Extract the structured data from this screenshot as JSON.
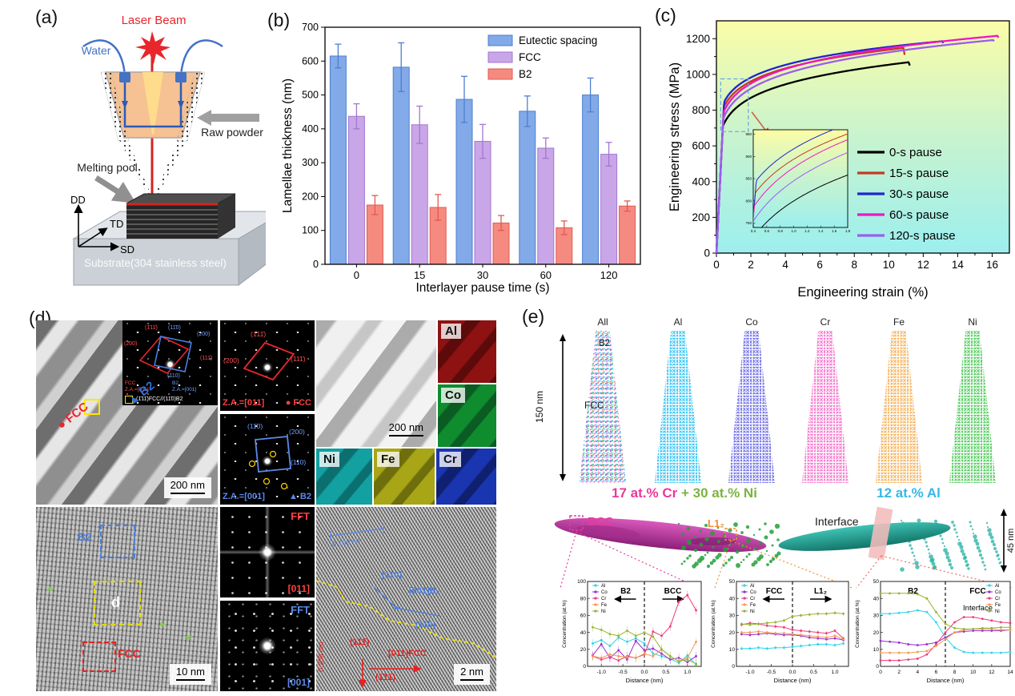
{
  "panel_a": {
    "label": "(a)",
    "laser_beam": "Laser Beam",
    "water": "Water",
    "raw_powder": "Raw powder",
    "melting_pool": "Melting pool",
    "axis_dd": "DD",
    "axis_td": "TD",
    "axis_sd": "SD",
    "substrate": "Substrate(304 stainless steel)"
  },
  "panel_b": {
    "label": "(b)"
  },
  "panel_c": {
    "label": "(c)"
  },
  "panel_d": {
    "label": "(d)",
    "tem_overview": {
      "fcc_marker": "● FCC",
      "b2_marker": "▲ B2",
      "scale": "200 nm",
      "saed": {
        "spot_red_1": "(1̄11̄)",
        "spot_blue_1": "(11̄0)",
        "spot_blue_2": "(200)",
        "spot_red_2": "(2̄00)",
        "spot_red_3": "(111̄)",
        "spot_blue_3": "(110)",
        "fcc_line1": "FCC",
        "fcc_line2": "Z.A.=[011]",
        "b2_line1": "B2",
        "b2_line2": "Z.A.=[001]",
        "relation": "(1̄11̄)FCC//(11̄0)B2"
      }
    },
    "saed_fcc": {
      "caption": "Z.A.=[011]",
      "marker": "● FCC",
      "spot1": "(1̄11̄)",
      "spot2": "(200)",
      "spot3": "(111̄)"
    },
    "saed_b2": {
      "caption": "Z.A.=[001]",
      "marker": "▲ B2",
      "spot1": "(11̄0)",
      "spot2": "(200)",
      "spot3": "(110)"
    },
    "eds": {
      "scale": "200 nm",
      "maps": [
        {
          "el": "Al",
          "c1": "#8e1212",
          "c2": "#5c0a0a"
        },
        {
          "el": "Co",
          "c1": "#0f8c2e",
          "c2": "#0a5c22"
        },
        {
          "el": "Ni",
          "c1": "#12a0a0",
          "c2": "#0b6f70"
        },
        {
          "el": "Fe",
          "c1": "#a8a616",
          "c2": "#6f6e0c"
        },
        {
          "el": "Cr",
          "c1": "#1a35b0",
          "c2": "#0f2070"
        }
      ]
    },
    "hrtem": {
      "b2": "B2",
      "d": "d",
      "fcc": "FCC",
      "scale": "10 nm",
      "arrow_glyph": "➤"
    },
    "fft_fcc": {
      "title": "FFT",
      "za": "[011]"
    },
    "fft_b2": {
      "title": "FFT",
      "za": "[001]"
    },
    "lattice": {
      "d_blue": "0.199 nm",
      "dir_blue1": "[110]",
      "dir_blue2": "[001]B₂",
      "plane_blue": "(11̄0)",
      "plane_red1": "(111̄)",
      "dir_red": "[011]FCC",
      "plane_red2": "(1̄11̄)",
      "d_red": "0.206 nm",
      "scale": "2 nm"
    }
  },
  "panel_e": {
    "label": "(e)",
    "needles": [
      {
        "name": "All",
        "color": "multi"
      },
      {
        "name": "Al",
        "color": "#45c8f5"
      },
      {
        "name": "Co",
        "color": "#7b7be8"
      },
      {
        "name": "Cr",
        "color": "#f77fd0"
      },
      {
        "name": "Fe",
        "color": "#f6b96b"
      },
      {
        "name": "Ni",
        "color": "#5fcf6a"
      }
    ],
    "b2": "B2",
    "fcc": "FCC",
    "height_label": "150 nm",
    "caption_cr": "17 at.% Cr",
    "caption_plus_ni": " + 30 at.% Ni",
    "caption_al": "12 at.% Al",
    "color_cr": "#e83a9a",
    "color_ni": "#7cb342",
    "color_al": "#35b8e8",
    "bcc": "BCC",
    "l12": "L1₂",
    "interface": "Interface",
    "width_label": "45 nm",
    "color_bcc": "#e83a9a",
    "color_l12": "#f09030"
  },
  "chart_data": [
    {
      "id": "lamellae_thickness",
      "type": "bar",
      "categories": [
        "0",
        "15",
        "30",
        "60",
        "120"
      ],
      "series": [
        {
          "name": "Eutectic spacing",
          "color": "#82aae8",
          "edge": "#4d7fd0",
          "values": [
            615,
            582,
            487,
            452,
            500
          ],
          "errors": [
            35,
            72,
            68,
            45,
            50
          ]
        },
        {
          "name": "FCC",
          "color": "#c9a6e8",
          "edge": "#a377cf",
          "values": [
            437,
            412,
            363,
            343,
            325
          ],
          "errors": [
            37,
            55,
            50,
            30,
            35
          ]
        },
        {
          "name": "B2",
          "color": "#f58a80",
          "edge": "#e25a50",
          "values": [
            175,
            168,
            122,
            108,
            172
          ],
          "errors": [
            28,
            38,
            22,
            20,
            15
          ]
        }
      ],
      "xlabel": "Interlayer pause time (s)",
      "ylabel": "Lamellae thickness (nm)",
      "ylim": [
        0,
        700
      ],
      "ytick_step": 100,
      "legend_position": "top-right",
      "grid": false
    },
    {
      "id": "stress_strain",
      "type": "line",
      "xlabel": "Engineering strain (%)",
      "ylabel": "Engineering stress (MPa)",
      "xlim": [
        0,
        17
      ],
      "ylim": [
        0,
        1300
      ],
      "xticks": [
        0,
        2,
        4,
        6,
        8,
        10,
        12,
        14,
        16
      ],
      "yticks": [
        0,
        200,
        400,
        600,
        800,
        1000,
        1200
      ],
      "background": [
        "#fbfda6",
        "#c8f3cf",
        "#9cefee"
      ],
      "model": {
        "elastic_slope": 1900
      },
      "series": [
        {
          "name": "0-s pause",
          "color": "#000000",
          "uts": 1068,
          "elongation": 11.15,
          "n": 0.12,
          "drop": 18
        },
        {
          "name": "15-s pause",
          "color": "#c23b22",
          "uts": 1148,
          "elongation": 10.85,
          "n": 0.105,
          "drop": 38
        },
        {
          "name": "30-s pause",
          "color": "#1f25cf",
          "uts": 1186,
          "elongation": 13.1,
          "n": 0.1,
          "drop": 10
        },
        {
          "name": "60-s pause",
          "color": "#ef17c0",
          "uts": 1216,
          "elongation": 16.3,
          "n": 0.118,
          "drop": 10
        },
        {
          "name": "120-s pause",
          "color": "#9a5df2",
          "uts": 1192,
          "elongation": 16.05,
          "n": 0.124,
          "drop": 6
        }
      ],
      "inset": {
        "xlim": [
          0.4,
          1.8
        ],
        "ylim": [
          740,
          960
        ],
        "source_box": [
          0.25,
          680,
          1.85,
          975
        ]
      }
    },
    {
      "id": "profile_b2_bcc",
      "type": "line",
      "xlabel": "Distance (nm)",
      "ylabel": "Concentration (at.%)",
      "xlim": [
        -1.32,
        1.32
      ],
      "ylim": [
        0,
        100
      ],
      "yticks": [
        0,
        20,
        40,
        60,
        80,
        100
      ],
      "xticks": [
        -1.0,
        -0.5,
        0.0,
        0.5,
        1.0
      ],
      "xtick_labels": [
        "-1.0",
        "-0.5",
        "0.0",
        "0.5",
        "1.0"
      ],
      "divider_x": 0,
      "region_left": "B2",
      "region_right": "BCC",
      "region_arrows": true,
      "legend_position": "top-left",
      "error_bar": 5,
      "x": [
        -1.2,
        -1.0,
        -0.8,
        -0.6,
        -0.4,
        -0.2,
        0,
        0.2,
        0.4,
        0.6,
        0.8,
        1.0,
        1.2
      ],
      "series": [
        {
          "name": "Al",
          "color": "#2ed3e8",
          "y": [
            27,
            31,
            24,
            34,
            29,
            33,
            27,
            15,
            12,
            9,
            4,
            13,
            2
          ]
        },
        {
          "name": "Co",
          "color": "#9a2bd0",
          "y": [
            13,
            26,
            10,
            19,
            8,
            30,
            19,
            21,
            15,
            8,
            10,
            5,
            12
          ]
        },
        {
          "name": "Cr",
          "color": "#ee3a7a",
          "y": [
            12,
            8,
            11,
            7,
            12,
            10,
            14,
            41,
            36,
            47,
            76,
            84,
            66
          ]
        },
        {
          "name": "Fe",
          "color": "#f29a4e",
          "y": [
            12,
            10,
            14,
            12,
            11,
            10,
            15,
            12,
            20,
            12,
            6,
            10,
            29
          ]
        },
        {
          "name": "Ni",
          "color": "#95b52f",
          "y": [
            46,
            43,
            38,
            36,
            42,
            36,
            40,
            35,
            20,
            12,
            6,
            8,
            3
          ]
        }
      ]
    },
    {
      "id": "profile_fcc_l12",
      "type": "line",
      "xlabel": "Distance (nm)",
      "ylabel": "Concentration (at.%)",
      "xlim": [
        -1.32,
        1.32
      ],
      "ylim": [
        0,
        50
      ],
      "yticks": [
        0,
        10,
        20,
        30,
        40,
        50
      ],
      "xticks": [
        -1.0,
        -0.5,
        0.0,
        0.5,
        1.0
      ],
      "xtick_labels": [
        "-1.0",
        "-0.5",
        "0.0",
        "0.5",
        "1.0"
      ],
      "divider_x": 0,
      "region_left": "FCC",
      "region_right": "L1₂",
      "region_arrows": true,
      "legend_position": "top-left",
      "error_bar": 1.2,
      "x": [
        -1.2,
        -1.0,
        -0.8,
        -0.6,
        -0.4,
        -0.2,
        0,
        0.2,
        0.4,
        0.6,
        0.8,
        1.0,
        1.2
      ],
      "series": [
        {
          "name": "Al",
          "color": "#2ed3e8",
          "y": [
            10.5,
            10.5,
            11,
            10.5,
            11,
            11,
            11.5,
            12,
            12.5,
            13,
            13,
            12.5,
            13.5
          ]
        },
        {
          "name": "Co",
          "color": "#9a2bd0",
          "y": [
            19,
            18.5,
            19,
            19.5,
            19,
            18.5,
            18.5,
            18,
            17,
            16.5,
            16,
            16.5,
            15.5
          ]
        },
        {
          "name": "Cr",
          "color": "#ee3a7a",
          "y": [
            24.5,
            25.5,
            25,
            24,
            23.5,
            23,
            21.5,
            21,
            20.5,
            20,
            19.5,
            21,
            16.5
          ]
        },
        {
          "name": "Fe",
          "color": "#f29a4e",
          "y": [
            20,
            20,
            20.5,
            20,
            19.5,
            19.5,
            19,
            18.5,
            18,
            17.5,
            17,
            18,
            16
          ]
        },
        {
          "name": "Ni",
          "color": "#95b52f",
          "y": [
            25,
            24.5,
            25,
            25.5,
            26,
            27,
            29.5,
            30,
            30.5,
            31,
            31,
            31.5,
            31
          ]
        }
      ]
    },
    {
      "id": "profile_b2_fcc_interface",
      "type": "line",
      "xlabel": "Distance (nm)",
      "ylabel": "Concentration (at.%)",
      "xlim": [
        0,
        14
      ],
      "ylim": [
        0,
        50
      ],
      "yticks": [
        0,
        10,
        20,
        30,
        40,
        50
      ],
      "xticks": [
        0,
        2,
        4,
        6,
        8,
        10,
        12,
        14
      ],
      "divider_x": 7,
      "region_left": "B2",
      "region_right": "FCC",
      "region_arrows": false,
      "extra_label": "Interface",
      "legend_position": "top-right",
      "error_bar": 0,
      "x": [
        0,
        1,
        2,
        3,
        4,
        5,
        6,
        7,
        8,
        9,
        10,
        11,
        12,
        13,
        14
      ],
      "series": [
        {
          "name": "Al",
          "color": "#2ed3e8",
          "y": [
            31,
            31,
            31.5,
            32,
            33,
            32,
            26,
            17,
            11,
            8.5,
            8,
            8,
            8,
            8,
            8.5
          ]
        },
        {
          "name": "Co",
          "color": "#9a2bd0",
          "y": [
            15,
            14.5,
            14,
            13,
            12.5,
            13,
            14,
            17,
            20,
            20.5,
            21,
            21,
            21,
            21,
            21.5
          ]
        },
        {
          "name": "Cr",
          "color": "#ee3a7a",
          "y": [
            3.5,
            3.5,
            3.5,
            4,
            4.5,
            7,
            13,
            20,
            26,
            29,
            29,
            28,
            27,
            26,
            25.5
          ]
        },
        {
          "name": "Fe",
          "color": "#f29a4e",
          "y": [
            8,
            8,
            8,
            8,
            8.5,
            9,
            12,
            16,
            20,
            21.5,
            22,
            22,
            22,
            21.5,
            21.5
          ]
        },
        {
          "name": "Ni",
          "color": "#95b52f",
          "y": [
            43,
            43,
            43,
            43,
            42.5,
            40,
            32,
            25,
            22.5,
            22,
            22,
            22.5,
            22.5,
            23,
            23
          ]
        }
      ]
    }
  ]
}
